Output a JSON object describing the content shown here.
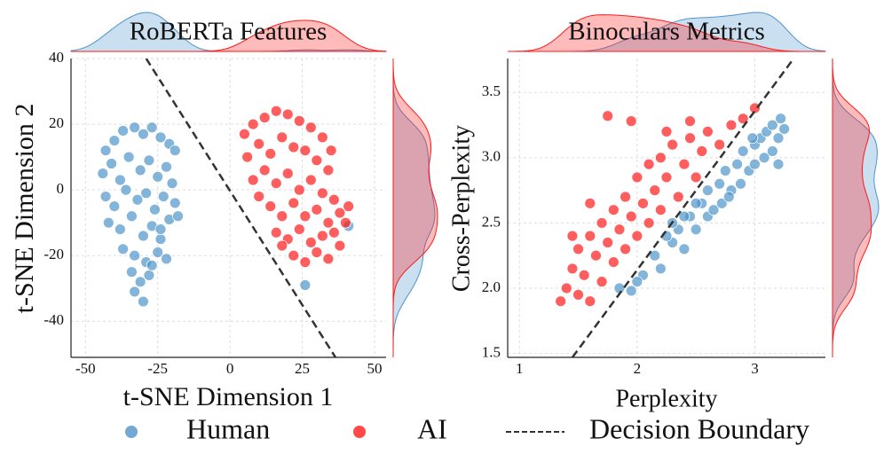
{
  "chart_data": [
    {
      "type": "scatter",
      "title": "RoBERTa Features",
      "x_label": "t-SNE Dimension 1",
      "y_label": "t-SNE Dimension 2",
      "xlim": [
        -55,
        54
      ],
      "ylim": [
        -51,
        40
      ],
      "xticks": [
        -50,
        -25,
        0,
        25,
        50
      ],
      "yticks": [
        -40,
        -20,
        0,
        20,
        40
      ],
      "grid": true,
      "series": [
        {
          "name": "Human",
          "color": "#4f94c9",
          "x": [
            -43,
            -40,
            -37,
            -33,
            -30,
            -27,
            -24,
            -21,
            -19,
            -44,
            -41,
            -38,
            -35,
            -31,
            -28,
            -25,
            -22,
            -20,
            -43,
            -40,
            -36,
            -32,
            -29,
            -26,
            -23,
            -19,
            -42,
            -38,
            -34,
            -30,
            -27,
            -24,
            -21,
            -37,
            -33,
            -29,
            -25,
            -22,
            -34,
            -31,
            -28,
            -33,
            -30,
            -27,
            -24,
            -18,
            26,
            41
          ],
          "values": [
            12,
            15,
            18,
            19,
            17,
            19,
            16,
            14,
            12,
            5,
            8,
            3,
            10,
            6,
            9,
            4,
            7,
            2,
            -2,
            -5,
            0,
            -3,
            -1,
            -6,
            -2,
            -4,
            -10,
            -12,
            -8,
            -14,
            -11,
            -15,
            -9,
            -18,
            -20,
            -22,
            -19,
            -21,
            -25,
            -28,
            -26,
            -31,
            -34,
            -23,
            -12,
            -8,
            -29,
            -11
          ]
        },
        {
          "name": "AI",
          "color": "#ff1a1a",
          "x": [
            5,
            8,
            12,
            16,
            20,
            24,
            28,
            32,
            35,
            6,
            10,
            14,
            18,
            22,
            26,
            30,
            34,
            8,
            12,
            16,
            20,
            24,
            28,
            32,
            36,
            10,
            14,
            18,
            22,
            26,
            30,
            34,
            38,
            41,
            16,
            20,
            24,
            28,
            32,
            36,
            40,
            22,
            26,
            30,
            34,
            38,
            18
          ],
          "values": [
            17,
            20,
            22,
            24,
            23,
            21,
            19,
            16,
            12,
            10,
            14,
            11,
            16,
            13,
            12,
            9,
            6,
            3,
            6,
            2,
            5,
            0,
            3,
            -1,
            -3,
            -2,
            -5,
            -8,
            -4,
            -8,
            -6,
            -10,
            -7,
            -5,
            -13,
            -15,
            -12,
            -16,
            -14,
            -13,
            -10,
            -20,
            -22,
            -19,
            -21,
            -17,
            -17
          ]
        }
      ],
      "lines": [
        {
          "name": "Decision Boundary",
          "x": [
            -29,
            36.5
          ],
          "y": [
            40,
            -51
          ]
        }
      ]
    },
    {
      "type": "scatter",
      "title": "Binoculars Metrics",
      "x_label": "Perplexity",
      "y_label": "Cross-Perplexity",
      "xlim": [
        0.9,
        3.6
      ],
      "ylim": [
        1.47,
        3.76
      ],
      "xticks": [
        1,
        2,
        3
      ],
      "yticks": [
        1.5,
        {
          "value": 2,
          "label": "2.0"
        },
        2.5,
        {
          "value": 3,
          "label": "3.0"
        },
        3.5
      ],
      "grid": true,
      "series": [
        {
          "name": "Human",
          "color": "#4f94c9",
          "x": [
            1.85,
            1.95,
            2.05,
            2.15,
            2.2,
            2.3,
            2.35,
            2.4,
            2.45,
            2.5,
            2.55,
            2.6,
            2.6,
            2.65,
            2.7,
            2.72,
            2.75,
            2.8,
            2.85,
            2.88,
            2.9,
            2.95,
            3.0,
            3.0,
            3.05,
            3.08,
            3.1,
            3.15,
            3.15,
            3.2,
            3.22,
            3.2,
            2.98,
            2.5,
            2.3,
            2.25,
            2.4,
            2.0,
            3.25,
            2.78
          ],
          "values": [
            2.0,
            1.98,
            2.1,
            2.25,
            2.15,
            2.35,
            2.45,
            2.3,
            2.55,
            2.45,
            2.65,
            2.55,
            2.75,
            2.6,
            2.8,
            2.65,
            2.9,
            2.75,
            2.95,
            2.8,
            3.05,
            2.9,
            3.1,
            2.95,
            3.15,
            3.0,
            3.2,
            3.05,
            3.25,
            3.15,
            3.3,
            2.95,
            3.15,
            2.65,
            2.5,
            2.4,
            2.55,
            2.05,
            3.22,
            2.7
          ]
        },
        {
          "name": "AI",
          "color": "#ff1a1a",
          "x": [
            1.35,
            1.4,
            1.45,
            1.5,
            1.5,
            1.55,
            1.6,
            1.6,
            1.65,
            1.7,
            1.7,
            1.75,
            1.8,
            1.8,
            1.85,
            1.9,
            1.9,
            1.95,
            2.0,
            2.0,
            2.05,
            2.1,
            2.1,
            2.15,
            2.2,
            2.2,
            2.25,
            2.3,
            2.35,
            2.4,
            2.45,
            2.5,
            2.55,
            2.6,
            2.7,
            2.8,
            2.9,
            3.0,
            1.75,
            1.95,
            2.45,
            1.6,
            1.45,
            2.25
          ],
          "values": [
            1.9,
            2.0,
            2.15,
            1.95,
            2.3,
            2.1,
            2.4,
            1.9,
            2.25,
            2.5,
            2.05,
            2.35,
            2.6,
            2.2,
            2.45,
            2.7,
            2.3,
            2.55,
            2.85,
            2.4,
            2.65,
            2.95,
            2.5,
            2.75,
            3.0,
            2.6,
            2.85,
            3.1,
            2.7,
            2.95,
            3.15,
            2.85,
            3.05,
            3.2,
            3.1,
            3.25,
            3.3,
            3.38,
            3.32,
            3.28,
            3.28,
            2.65,
            2.4,
            3.2
          ]
        }
      ],
      "lines": [
        {
          "name": "Decision Boundary",
          "x": [
            1.45,
            3.33
          ],
          "y": [
            1.47,
            3.76
          ]
        }
      ]
    }
  ]
}
